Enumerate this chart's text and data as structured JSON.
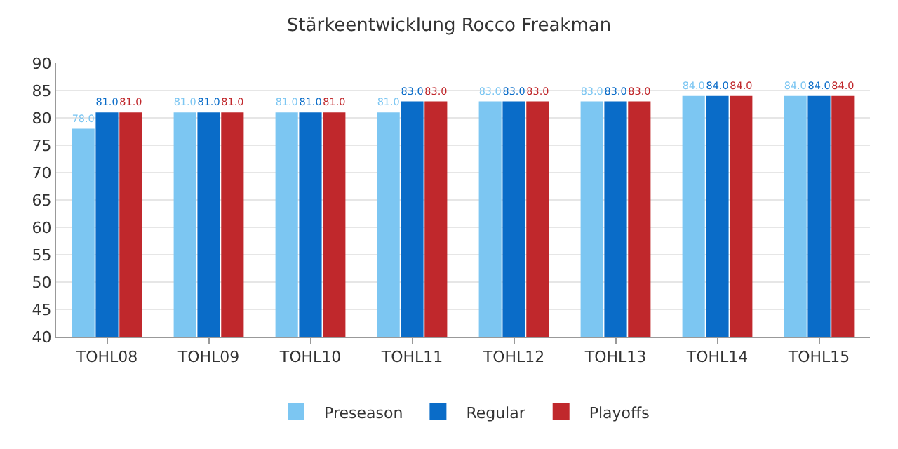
{
  "chart_data": {
    "type": "bar",
    "title": "Stärkeentwicklung Rocco Freakman",
    "categories": [
      "TOHL08",
      "TOHL09",
      "TOHL10",
      "TOHL11",
      "TOHL12",
      "TOHL13",
      "TOHL14",
      "TOHL15"
    ],
    "series": [
      {
        "name": "Preseason",
        "color": "#7cc6f2",
        "values": [
          78,
          81,
          81,
          81,
          83,
          83,
          84,
          84
        ],
        "value_labels": [
          "78.0",
          "81.0",
          "81.0",
          "81.0",
          "83.0",
          "83.0",
          "84.0",
          "84.0"
        ]
      },
      {
        "name": "Regular",
        "color": "#0a6cc8",
        "values": [
          81,
          81,
          81,
          83,
          83,
          83,
          84,
          84
        ],
        "value_labels": [
          "81.0",
          "81.0",
          "81.0",
          "83.0",
          "83.0",
          "83.0",
          "84.0",
          "84.0"
        ]
      },
      {
        "name": "Playoffs",
        "color": "#c0282c",
        "values": [
          81,
          81,
          81,
          83,
          83,
          83,
          84,
          84
        ],
        "value_labels": [
          "81.0",
          "81.0",
          "81.0",
          "83.0",
          "83.0",
          "83.0",
          "84.0",
          "84.0"
        ]
      }
    ],
    "ylim": [
      40,
      90
    ],
    "yticks": [
      40,
      45,
      50,
      55,
      60,
      65,
      70,
      75,
      80,
      85,
      90
    ],
    "grid": "y",
    "legend": "bottom"
  }
}
